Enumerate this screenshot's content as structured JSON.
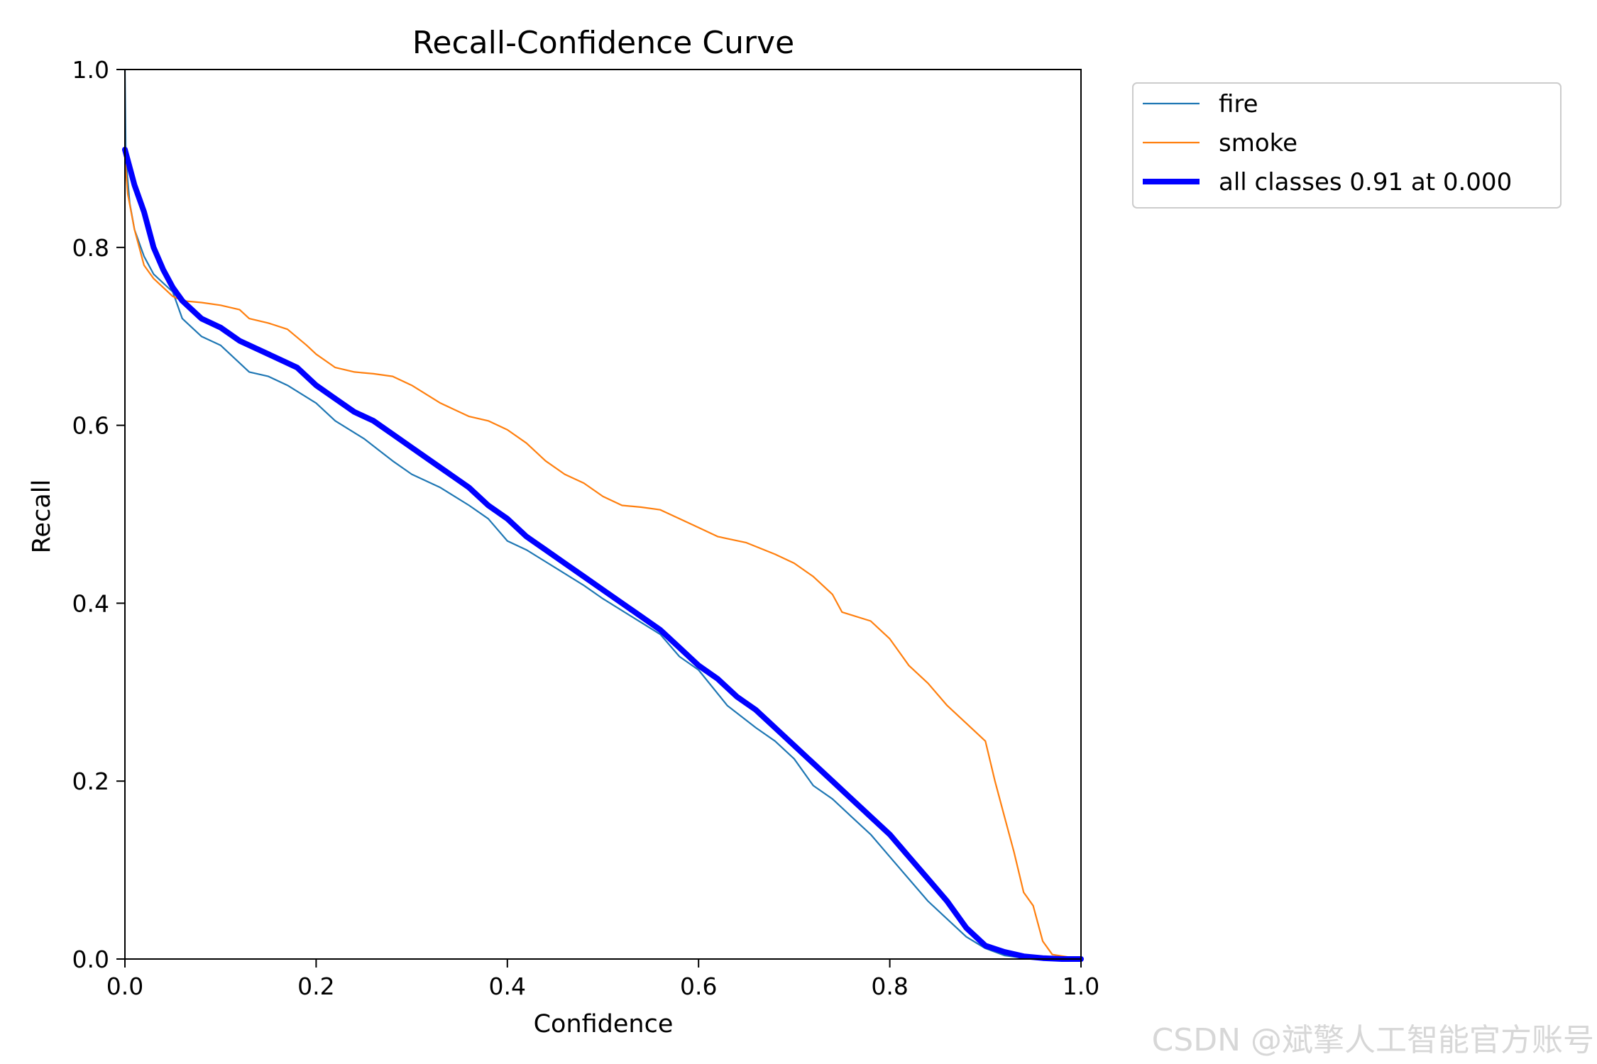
{
  "chart_data": {
    "type": "line",
    "title": "Recall-Confidence Curve",
    "xlabel": "Confidence",
    "ylabel": "Recall",
    "xlim": [
      0.0,
      1.0
    ],
    "ylim": [
      0.0,
      1.0
    ],
    "x_ticks": [
      "0.0",
      "0.2",
      "0.4",
      "0.6",
      "0.8",
      "1.0"
    ],
    "y_ticks": [
      "0.0",
      "0.2",
      "0.4",
      "0.6",
      "0.8",
      "1.0"
    ],
    "grid": false,
    "legend_position": "outside top-right",
    "series": [
      {
        "name": "fire",
        "color": "#1f77b4",
        "linewidth": "thin",
        "x": [
          0.0,
          0.001,
          0.005,
          0.01,
          0.02,
          0.03,
          0.04,
          0.05,
          0.06,
          0.07,
          0.08,
          0.1,
          0.12,
          0.13,
          0.15,
          0.17,
          0.2,
          0.22,
          0.25,
          0.28,
          0.3,
          0.33,
          0.36,
          0.38,
          0.4,
          0.42,
          0.45,
          0.48,
          0.5,
          0.53,
          0.56,
          0.58,
          0.6,
          0.63,
          0.66,
          0.68,
          0.7,
          0.72,
          0.74,
          0.76,
          0.78,
          0.8,
          0.82,
          0.84,
          0.86,
          0.88,
          0.9,
          0.92,
          0.94,
          0.96,
          1.0
        ],
        "y": [
          1.0,
          0.9,
          0.85,
          0.82,
          0.79,
          0.77,
          0.76,
          0.75,
          0.72,
          0.71,
          0.7,
          0.69,
          0.67,
          0.66,
          0.655,
          0.645,
          0.625,
          0.605,
          0.585,
          0.56,
          0.545,
          0.53,
          0.51,
          0.495,
          0.47,
          0.46,
          0.44,
          0.42,
          0.405,
          0.385,
          0.365,
          0.34,
          0.325,
          0.285,
          0.26,
          0.245,
          0.225,
          0.195,
          0.18,
          0.16,
          0.14,
          0.115,
          0.09,
          0.065,
          0.045,
          0.025,
          0.012,
          0.004,
          0.001,
          0.0,
          0.0
        ]
      },
      {
        "name": "smoke",
        "color": "#ff7f0e",
        "linewidth": "thin",
        "x": [
          0.0,
          0.003,
          0.01,
          0.02,
          0.03,
          0.05,
          0.06,
          0.08,
          0.1,
          0.12,
          0.13,
          0.15,
          0.17,
          0.19,
          0.2,
          0.22,
          0.24,
          0.26,
          0.28,
          0.3,
          0.33,
          0.36,
          0.38,
          0.4,
          0.42,
          0.44,
          0.46,
          0.48,
          0.5,
          0.52,
          0.54,
          0.56,
          0.58,
          0.6,
          0.62,
          0.65,
          0.68,
          0.7,
          0.72,
          0.74,
          0.75,
          0.78,
          0.8,
          0.82,
          0.84,
          0.86,
          0.88,
          0.89,
          0.9,
          0.91,
          0.92,
          0.93,
          0.94,
          0.95,
          0.96,
          0.97,
          1.0
        ],
        "y": [
          0.9,
          0.86,
          0.82,
          0.78,
          0.765,
          0.745,
          0.74,
          0.738,
          0.735,
          0.73,
          0.72,
          0.715,
          0.708,
          0.69,
          0.68,
          0.665,
          0.66,
          0.658,
          0.655,
          0.645,
          0.625,
          0.61,
          0.605,
          0.595,
          0.58,
          0.56,
          0.545,
          0.535,
          0.52,
          0.51,
          0.508,
          0.505,
          0.495,
          0.485,
          0.475,
          0.468,
          0.455,
          0.445,
          0.43,
          0.41,
          0.39,
          0.38,
          0.36,
          0.33,
          0.31,
          0.285,
          0.265,
          0.255,
          0.245,
          0.2,
          0.16,
          0.12,
          0.075,
          0.06,
          0.02,
          0.005,
          0.0
        ]
      },
      {
        "name": "all classes 0.91 at 0.000",
        "color": "#0000ff",
        "linewidth": "thick",
        "x": [
          0.0,
          0.01,
          0.02,
          0.03,
          0.04,
          0.05,
          0.06,
          0.07,
          0.08,
          0.1,
          0.12,
          0.14,
          0.16,
          0.18,
          0.2,
          0.22,
          0.24,
          0.26,
          0.28,
          0.3,
          0.32,
          0.34,
          0.36,
          0.38,
          0.4,
          0.42,
          0.44,
          0.46,
          0.48,
          0.5,
          0.52,
          0.54,
          0.56,
          0.58,
          0.6,
          0.62,
          0.64,
          0.66,
          0.68,
          0.7,
          0.72,
          0.74,
          0.76,
          0.78,
          0.8,
          0.82,
          0.84,
          0.86,
          0.88,
          0.9,
          0.92,
          0.94,
          0.96,
          0.98,
          1.0
        ],
        "y": [
          0.91,
          0.87,
          0.84,
          0.8,
          0.775,
          0.755,
          0.74,
          0.73,
          0.72,
          0.71,
          0.695,
          0.685,
          0.675,
          0.665,
          0.645,
          0.63,
          0.615,
          0.605,
          0.59,
          0.575,
          0.56,
          0.545,
          0.53,
          0.51,
          0.495,
          0.475,
          0.46,
          0.445,
          0.43,
          0.415,
          0.4,
          0.385,
          0.37,
          0.35,
          0.33,
          0.315,
          0.295,
          0.28,
          0.26,
          0.24,
          0.22,
          0.2,
          0.18,
          0.16,
          0.14,
          0.115,
          0.09,
          0.065,
          0.035,
          0.015,
          0.008,
          0.003,
          0.001,
          0.0,
          0.0
        ]
      }
    ]
  },
  "watermark": "CSDN @斌擎人工智能官方账号"
}
